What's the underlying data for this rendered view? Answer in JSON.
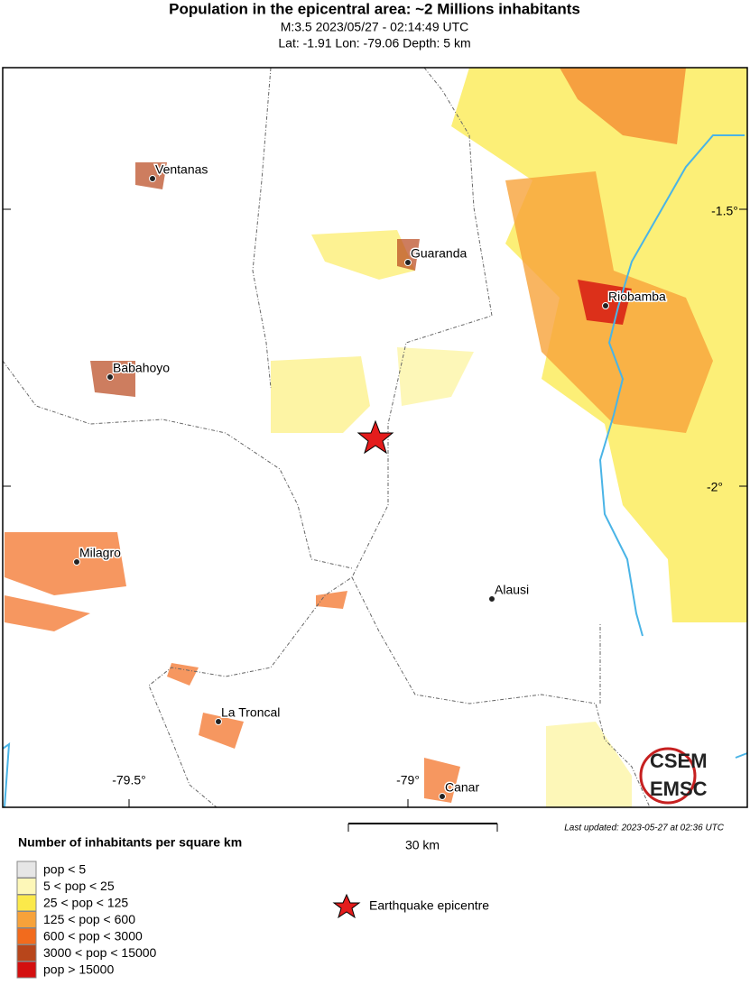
{
  "header": {
    "title": "Population in the epicentral area: ~2 Millions inhabitants",
    "event_line": "M:3.5 2023/05/27 - 02:14:49 UTC",
    "location_line": "Lat: -1.91 Lon: -79.06 Depth: 5 km"
  },
  "map": {
    "cities": [
      {
        "label": "Ventanas"
      },
      {
        "label": "Guaranda"
      },
      {
        "label": "Riobamba"
      },
      {
        "label": "Babahoyo"
      },
      {
        "label": "Milagro"
      },
      {
        "label": "Alausi"
      },
      {
        "label": "La Troncal"
      },
      {
        "label": "Canar"
      }
    ],
    "lat_labels": [
      "-1.5°",
      "-2°"
    ],
    "lon_labels": [
      "-79.5°",
      "-79°"
    ],
    "scale_label": "30 km",
    "last_updated": "Last updated: 2023-05-27 at 02:36 UTC"
  },
  "logo": {
    "top": "CSEM",
    "bottom": "EMSC"
  },
  "legend": {
    "title": "Number of inhabitants per square km",
    "epicentre_label": "Earthquake epicentre",
    "items": [
      {
        "label": "pop < 5",
        "color": "#e6e6e6"
      },
      {
        "label": "5 < pop < 25",
        "color": "#fdf7b8"
      },
      {
        "label": "25 < pop < 125",
        "color": "#fbe94a"
      },
      {
        "label": "125 < pop < 600",
        "color": "#f7a23a"
      },
      {
        "label": "600 < pop < 3000",
        "color": "#f26b1d"
      },
      {
        "label": "3000 < pop < 15000",
        "color": "#b8461b"
      },
      {
        "label": "pop > 15000",
        "color": "#d40f0f"
      }
    ]
  }
}
